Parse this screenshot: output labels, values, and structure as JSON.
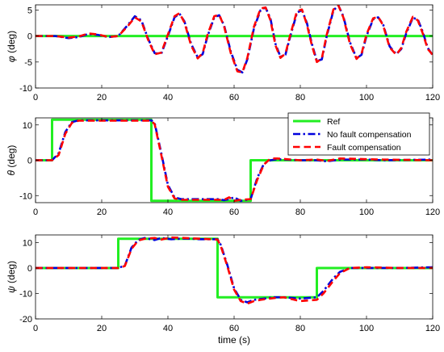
{
  "colors": {
    "ref": "#22ee22",
    "nofault": "#0000dd",
    "fault": "#ff0000"
  },
  "chart_data": [
    {
      "type": "line",
      "ylabel_symbol": "φ",
      "ylabel_unit": " (deg)",
      "xlim": [
        0,
        120
      ],
      "ylim": [
        -10,
        6
      ],
      "xticks": [
        0,
        20,
        40,
        60,
        80,
        100,
        120
      ],
      "yticks": [
        -10,
        -5,
        0,
        5
      ],
      "series": [
        {
          "role": "ref",
          "points": [
            [
              0,
              0
            ],
            [
              120,
              0
            ]
          ]
        },
        {
          "role": "nofault",
          "points": [
            [
              0,
              0
            ],
            [
              6,
              0
            ],
            [
              10,
              -0.4
            ],
            [
              13,
              -0.2
            ],
            [
              16,
              0.4
            ],
            [
              19,
              0.2
            ],
            [
              22,
              -0.2
            ],
            [
              25,
              0
            ],
            [
              28,
              2.2
            ],
            [
              30,
              3.8
            ],
            [
              32,
              3.0
            ],
            [
              34,
              -0.5
            ],
            [
              36,
              -3.3
            ],
            [
              38,
              -3.4
            ],
            [
              40,
              0
            ],
            [
              42,
              3.6
            ],
            [
              43.5,
              4.3
            ],
            [
              45,
              2.8
            ],
            [
              47,
              -1.5
            ],
            [
              49,
              -4.1
            ],
            [
              50.5,
              -3.5
            ],
            [
              52,
              0
            ],
            [
              54,
              3.6
            ],
            [
              55.5,
              4.0
            ],
            [
              57,
              2.0
            ],
            [
              59,
              -3.0
            ],
            [
              61,
              -6.5
            ],
            [
              62.5,
              -7.0
            ],
            [
              64,
              -4.5
            ],
            [
              66,
              1.5
            ],
            [
              68,
              5.0
            ],
            [
              69.5,
              5.5
            ],
            [
              71,
              3.3
            ],
            [
              72.5,
              -1.5
            ],
            [
              74,
              -4.0
            ],
            [
              75.5,
              -3.6
            ],
            [
              77,
              0
            ],
            [
              79,
              4.5
            ],
            [
              80.5,
              5.0
            ],
            [
              82,
              2.5
            ],
            [
              83.5,
              -1.5
            ],
            [
              85,
              -4.8
            ],
            [
              86.5,
              -4.5
            ],
            [
              88,
              0
            ],
            [
              90,
              4.9
            ],
            [
              91.5,
              5.9
            ],
            [
              93,
              3.8
            ],
            [
              95,
              -1.2
            ],
            [
              97,
              -4.3
            ],
            [
              98.5,
              -3.6
            ],
            [
              100,
              0
            ],
            [
              102,
              3.2
            ],
            [
              103.5,
              3.6
            ],
            [
              105,
              2.3
            ],
            [
              107,
              -2.0
            ],
            [
              109,
              -3.5
            ],
            [
              110.5,
              -2.5
            ],
            [
              112,
              0.5
            ],
            [
              114,
              3.5
            ],
            [
              115.5,
              3.2
            ],
            [
              117,
              0.8
            ],
            [
              118.5,
              -2.3
            ],
            [
              120,
              -3.7
            ]
          ]
        },
        {
          "role": "fault",
          "points": [
            [
              0,
              0
            ],
            [
              6,
              0
            ],
            [
              10,
              -0.3
            ],
            [
              13,
              -0.1
            ],
            [
              16,
              0.5
            ],
            [
              19,
              0.3
            ],
            [
              22,
              -0.2
            ],
            [
              25,
              0
            ],
            [
              28,
              2.0
            ],
            [
              30,
              3.6
            ],
            [
              32,
              2.8
            ],
            [
              34,
              -0.7
            ],
            [
              36,
              -3.5
            ],
            [
              38,
              -3.2
            ],
            [
              40,
              0.3
            ],
            [
              42,
              3.8
            ],
            [
              43.5,
              4.4
            ],
            [
              45,
              2.6
            ],
            [
              47,
              -1.8
            ],
            [
              49,
              -4.3
            ],
            [
              50.5,
              -3.3
            ],
            [
              52,
              0.3
            ],
            [
              54,
              3.8
            ],
            [
              55.5,
              4.1
            ],
            [
              57,
              1.8
            ],
            [
              59,
              -3.3
            ],
            [
              61,
              -6.8
            ],
            [
              62.5,
              -7.0
            ],
            [
              64,
              -4.2
            ],
            [
              66,
              1.8
            ],
            [
              68,
              5.3
            ],
            [
              69.5,
              5.5
            ],
            [
              71,
              3.0
            ],
            [
              72.5,
              -1.8
            ],
            [
              74,
              -4.2
            ],
            [
              75.5,
              -3.4
            ],
            [
              77,
              0.3
            ],
            [
              79,
              4.8
            ],
            [
              80.5,
              5.1
            ],
            [
              82,
              2.2
            ],
            [
              83.5,
              -1.8
            ],
            [
              85,
              -5.0
            ],
            [
              86.5,
              -4.3
            ],
            [
              88,
              0.3
            ],
            [
              90,
              5.1
            ],
            [
              91.5,
              5.9
            ],
            [
              93,
              3.6
            ],
            [
              95,
              -1.5
            ],
            [
              97,
              -4.4
            ],
            [
              98.5,
              -3.4
            ],
            [
              100,
              0.3
            ],
            [
              102,
              3.4
            ],
            [
              103.5,
              3.7
            ],
            [
              105,
              2.1
            ],
            [
              107,
              -2.2
            ],
            [
              109,
              -3.6
            ],
            [
              110.5,
              -2.3
            ],
            [
              112,
              0.8
            ],
            [
              114,
              3.7
            ],
            [
              115.5,
              3.0
            ],
            [
              117,
              0.5
            ],
            [
              118.5,
              -2.5
            ],
            [
              120,
              -3.6
            ]
          ]
        }
      ]
    },
    {
      "type": "line",
      "ylabel_symbol": "θ",
      "ylabel_unit": " (deg)",
      "xlim": [
        0,
        120
      ],
      "ylim": [
        -12,
        12
      ],
      "xticks": [
        0,
        20,
        40,
        60,
        80,
        100,
        120
      ],
      "yticks": [
        -10,
        0,
        10
      ],
      "legend_position": "top-right",
      "legend": [
        "Ref",
        "No fault compensation",
        "Fault compensation"
      ],
      "series": [
        {
          "role": "ref",
          "points": [
            [
              0,
              0
            ],
            [
              5,
              0
            ],
            [
              5,
              11.5
            ],
            [
              35,
              11.5
            ],
            [
              35,
              -11.5
            ],
            [
              65,
              -11.5
            ],
            [
              65,
              0
            ],
            [
              120,
              0
            ]
          ]
        },
        {
          "role": "nofault",
          "points": [
            [
              0,
              0
            ],
            [
              5,
              0
            ],
            [
              7,
              2
            ],
            [
              9,
              8
            ],
            [
              11,
              10.8
            ],
            [
              13,
              11.3
            ],
            [
              35,
              11.3
            ],
            [
              36,
              10.5
            ],
            [
              38,
              2
            ],
            [
              40,
              -7
            ],
            [
              42,
              -10.5
            ],
            [
              44,
              -11
            ],
            [
              55,
              -11
            ],
            [
              57,
              -11.3
            ],
            [
              58.5,
              -11
            ],
            [
              60,
              -10.5
            ],
            [
              62,
              -11.5
            ],
            [
              65,
              -11
            ],
            [
              67,
              -5
            ],
            [
              69,
              -1
            ],
            [
              71,
              0
            ],
            [
              73,
              0.3
            ],
            [
              80,
              0
            ],
            [
              85,
              0
            ],
            [
              88,
              -0.3
            ],
            [
              92,
              0.2
            ],
            [
              100,
              0.2
            ],
            [
              105,
              0
            ],
            [
              120,
              0.2
            ]
          ]
        },
        {
          "role": "fault",
          "points": [
            [
              0,
              0
            ],
            [
              5,
              0
            ],
            [
              7,
              1.5
            ],
            [
              9,
              7.5
            ],
            [
              11,
              10.6
            ],
            [
              13,
              11.2
            ],
            [
              35,
              11.2
            ],
            [
              36,
              10.2
            ],
            [
              38,
              1.5
            ],
            [
              40,
              -7.5
            ],
            [
              42,
              -10.8
            ],
            [
              44,
              -11.2
            ],
            [
              55,
              -11.2
            ],
            [
              57,
              -11.2
            ],
            [
              58.5,
              -10.5
            ],
            [
              60,
              -11.5
            ],
            [
              62,
              -11.2
            ],
            [
              65,
              -11
            ],
            [
              67,
              -5.5
            ],
            [
              69,
              -1.2
            ],
            [
              71,
              0.5
            ],
            [
              73,
              0.5
            ],
            [
              80,
              0
            ],
            [
              85,
              0.2
            ],
            [
              88,
              -0.2
            ],
            [
              92,
              0.5
            ],
            [
              100,
              0.3
            ],
            [
              105,
              0.2
            ],
            [
              120,
              0
            ]
          ]
        }
      ]
    },
    {
      "type": "line",
      "ylabel_symbol": "ψ",
      "ylabel_unit": " (deg)",
      "xlabel": "time (s)",
      "xlim": [
        0,
        120
      ],
      "ylim": [
        -20,
        13
      ],
      "xticks": [
        0,
        20,
        40,
        60,
        80,
        100,
        120
      ],
      "yticks": [
        -20,
        -10,
        0,
        10
      ],
      "series": [
        {
          "role": "ref",
          "points": [
            [
              0,
              0
            ],
            [
              25,
              0
            ],
            [
              25,
              11.5
            ],
            [
              55,
              11.5
            ],
            [
              55,
              -11.5
            ],
            [
              85,
              -11.5
            ],
            [
              85,
              0
            ],
            [
              120,
              0
            ]
          ]
        },
        {
          "role": "nofault",
          "points": [
            [
              0,
              0
            ],
            [
              25,
              0
            ],
            [
              27,
              1
            ],
            [
              29,
              8
            ],
            [
              31,
              11
            ],
            [
              33,
              11.8
            ],
            [
              36,
              11
            ],
            [
              38,
              11.8
            ],
            [
              41,
              11.3
            ],
            [
              45,
              11.6
            ],
            [
              50,
              11.3
            ],
            [
              55,
              11.3
            ],
            [
              56,
              9
            ],
            [
              58,
              1
            ],
            [
              60,
              -8
            ],
            [
              62,
              -12.5
            ],
            [
              64,
              -13.5
            ],
            [
              66,
              -12.5
            ],
            [
              68,
              -12.2
            ],
            [
              72,
              -11.5
            ],
            [
              75,
              -11.5
            ],
            [
              80,
              -12
            ],
            [
              85,
              -11.5
            ],
            [
              87,
              -9
            ],
            [
              90,
              -4
            ],
            [
              92,
              -1.5
            ],
            [
              95,
              0
            ],
            [
              100,
              0
            ],
            [
              110,
              0
            ],
            [
              120,
              0.3
            ]
          ]
        },
        {
          "role": "fault",
          "points": [
            [
              0,
              0
            ],
            [
              25,
              0
            ],
            [
              27,
              0.8
            ],
            [
              29,
              7.5
            ],
            [
              31,
              10.8
            ],
            [
              33,
              11.5
            ],
            [
              36,
              11.8
            ],
            [
              38,
              11.2
            ],
            [
              41,
              12
            ],
            [
              45,
              11.8
            ],
            [
              50,
              11.5
            ],
            [
              55,
              11.2
            ],
            [
              56,
              8.5
            ],
            [
              58,
              0.5
            ],
            [
              60,
              -8.5
            ],
            [
              62,
              -13
            ],
            [
              64,
              -14
            ],
            [
              66,
              -13
            ],
            [
              68,
              -12.5
            ],
            [
              72,
              -11.8
            ],
            [
              75,
              -11.5
            ],
            [
              80,
              -13
            ],
            [
              85,
              -12.5
            ],
            [
              87,
              -10
            ],
            [
              90,
              -5
            ],
            [
              92,
              -2
            ],
            [
              95,
              0
            ],
            [
              100,
              0.3
            ],
            [
              110,
              0
            ],
            [
              120,
              0
            ]
          ]
        }
      ]
    }
  ]
}
